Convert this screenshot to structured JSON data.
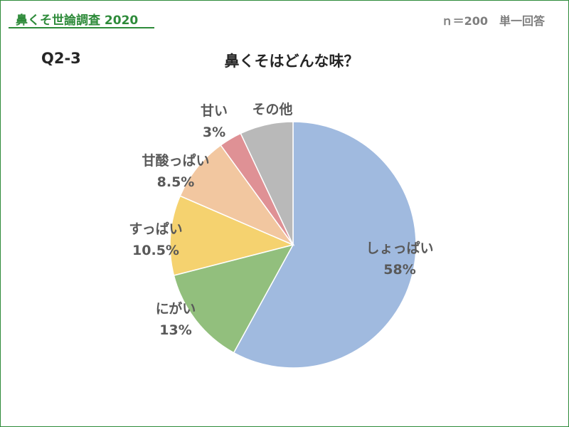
{
  "header": {
    "brand": "鼻くそ世論調査 2020",
    "sample_info": "ｎ＝200　単一回答"
  },
  "question": {
    "number": "Q2-3",
    "title": "鼻くそはどんな味？"
  },
  "colors": {
    "brand_green": "#2e8b3a",
    "text_dark": "#262626",
    "label_gray": "#595959"
  },
  "chart_data": {
    "type": "pie",
    "title": "鼻くそはどんな味？",
    "start": "12 o'clock",
    "direction": "clockwise",
    "legend": "none",
    "slices": [
      {
        "label": "しょっぱい",
        "value": 58,
        "value_label": "58%",
        "color": "#a0badf"
      },
      {
        "label": "にがい",
        "value": 13,
        "value_label": "13%",
        "color": "#92bf7d"
      },
      {
        "label": "すっぱい",
        "value": 10.5,
        "value_label": "10.5%",
        "color": "#f5d26f"
      },
      {
        "label": "甘酸っぱい",
        "value": 8.5,
        "value_label": "8.5%",
        "color": "#f2c7a0"
      },
      {
        "label": "甘い",
        "value": 3,
        "value_label": "3%",
        "color": "#df9195"
      },
      {
        "label": "その他",
        "value": 7,
        "value_label": "",
        "color": "#b9b9b9"
      }
    ]
  }
}
